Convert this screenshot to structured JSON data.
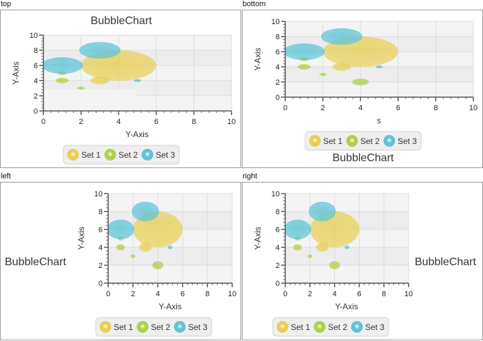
{
  "panels": [
    {
      "id": "top",
      "label": "top",
      "title_side": "top",
      "x_label": "Y-Axis",
      "y_label": "Y-Axis",
      "artifact": true,
      "hidden_points": [
        {
          "set": 1,
          "x": 4,
          "y": 2
        }
      ]
    },
    {
      "id": "bottom",
      "label": "bottom",
      "title_side": "bottom",
      "x_label": "s",
      "y_label": "Y-Axis",
      "artifact": false,
      "hidden_points": []
    },
    {
      "id": "left",
      "label": "left",
      "title_side": "left",
      "x_label": "Y-Axis",
      "y_label": "Y-Axis",
      "artifact": false,
      "hidden_points": []
    },
    {
      "id": "right",
      "label": "right",
      "title_side": "right",
      "x_label": "Y-Axis",
      "y_label": "Y-Axis",
      "artifact": false,
      "hidden_points": []
    }
  ],
  "chart_data": {
    "type": "scatter",
    "subtype": "bubble",
    "title": "BubbleChart",
    "xlim": [
      0,
      10
    ],
    "ylim": [
      0,
      10
    ],
    "x_ticks": [
      0,
      2,
      4,
      6,
      8,
      10
    ],
    "y_ticks": [
      0,
      2,
      4,
      6,
      8,
      10
    ],
    "grid": true,
    "legend_position": "below plot",
    "series": [
      {
        "name": "Set 1",
        "color": "#e8cf55",
        "points": [
          {
            "x": 3,
            "y": 4,
            "r": 0.5
          },
          {
            "x": 4,
            "y": 6,
            "r": 2.0
          }
        ]
      },
      {
        "name": "Set 2",
        "color": "#add14a",
        "points": [
          {
            "x": 1,
            "y": 4,
            "r": 0.35
          },
          {
            "x": 2,
            "y": 3,
            "r": 0.2
          },
          {
            "x": 1,
            "y": 5,
            "r": 0.25
          },
          {
            "x": 4,
            "y": 2,
            "r": 0.45
          }
        ]
      },
      {
        "name": "Set 3",
        "color": "#5ec3d7",
        "points": [
          {
            "x": 1,
            "y": 6,
            "r": 1.1
          },
          {
            "x": 3,
            "y": 8,
            "r": 1.1
          },
          {
            "x": 5,
            "y": 4,
            "r": 0.2
          }
        ]
      }
    ]
  }
}
